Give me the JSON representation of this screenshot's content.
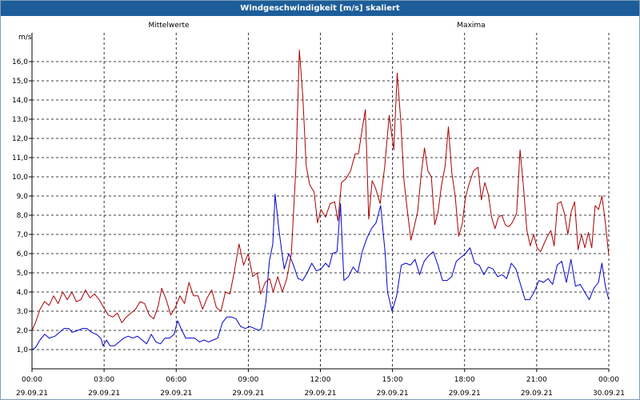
{
  "window": {
    "title": "Windgeschwindigkeit [m/s] skaliert"
  },
  "chart_data": {
    "type": "line",
    "title": "Windgeschwindigkeit [m/s] skaliert",
    "ylabel": "m/s",
    "ylim": [
      0,
      17.5
    ],
    "xlim": [
      0,
      24
    ],
    "grid": true,
    "y_ticks": [
      "1,0",
      "2,0",
      "3,0",
      "4,0",
      "5,0",
      "6,0",
      "7,0",
      "8,0",
      "9,0",
      "10,0",
      "11,0",
      "12,0",
      "13,0",
      "14,0",
      "15,0",
      "16,0"
    ],
    "x_ticks": [
      {
        "x": 0,
        "time": "00:00",
        "date": "29.09.21"
      },
      {
        "x": 3,
        "time": "03:00",
        "date": "29.09.21"
      },
      {
        "x": 6,
        "time": "06:00",
        "date": "29.09.21"
      },
      {
        "x": 9,
        "time": "09:00",
        "date": "29.09.21"
      },
      {
        "x": 12,
        "time": "12:00",
        "date": "29.09.21"
      },
      {
        "x": 15,
        "time": "15:00",
        "date": "29.09.21"
      },
      {
        "x": 18,
        "time": "18:00",
        "date": "29.09.21"
      },
      {
        "x": 21,
        "time": "21:00",
        "date": "29.09.21"
      },
      {
        "x": 24,
        "time": "00:00",
        "date": "30.09.21"
      }
    ],
    "series": [
      {
        "name": "Mittelwerte",
        "color": "#0000cc",
        "points": [
          [
            0,
            1.0
          ],
          [
            0.15,
            1.1
          ],
          [
            0.35,
            1.5
          ],
          [
            0.55,
            1.8
          ],
          [
            0.75,
            1.6
          ],
          [
            1.0,
            1.7
          ],
          [
            1.2,
            1.9
          ],
          [
            1.4,
            2.1
          ],
          [
            1.6,
            2.1
          ],
          [
            1.75,
            1.9
          ],
          [
            2.0,
            2.0
          ],
          [
            2.2,
            2.1
          ],
          [
            2.4,
            2.1
          ],
          [
            2.6,
            1.9
          ],
          [
            2.8,
            1.8
          ],
          [
            3.0,
            1.6
          ],
          [
            3.1,
            1.2
          ],
          [
            3.25,
            1.5
          ],
          [
            3.4,
            1.2
          ],
          [
            3.6,
            1.2
          ],
          [
            3.8,
            1.4
          ],
          [
            4.0,
            1.6
          ],
          [
            4.2,
            1.7
          ],
          [
            4.4,
            1.6
          ],
          [
            4.6,
            1.7
          ],
          [
            4.8,
            1.5
          ],
          [
            5.0,
            1.3
          ],
          [
            5.2,
            1.8
          ],
          [
            5.4,
            1.4
          ],
          [
            5.6,
            1.3
          ],
          [
            5.8,
            1.6
          ],
          [
            6.0,
            1.6
          ],
          [
            6.2,
            1.8
          ],
          [
            6.35,
            2.5
          ],
          [
            6.5,
            2.1
          ],
          [
            6.7,
            1.6
          ],
          [
            6.9,
            1.6
          ],
          [
            7.1,
            1.6
          ],
          [
            7.3,
            1.4
          ],
          [
            7.5,
            1.5
          ],
          [
            7.7,
            1.4
          ],
          [
            7.9,
            1.5
          ],
          [
            8.1,
            1.6
          ],
          [
            8.3,
            2.4
          ],
          [
            8.5,
            2.7
          ],
          [
            8.7,
            2.7
          ],
          [
            8.9,
            2.6
          ],
          [
            9.0,
            2.4
          ],
          [
            9.1,
            2.2
          ],
          [
            9.3,
            2.1
          ],
          [
            9.5,
            2.2
          ],
          [
            9.7,
            2.1
          ],
          [
            9.9,
            2.0
          ],
          [
            10.0,
            2.1
          ],
          [
            10.2,
            3.5
          ],
          [
            10.35,
            5.6
          ],
          [
            10.5,
            6.5
          ],
          [
            10.6,
            9.1
          ],
          [
            10.75,
            7.4
          ],
          [
            10.9,
            6.0
          ],
          [
            11.0,
            5.2
          ],
          [
            11.2,
            6.0
          ],
          [
            11.4,
            5.4
          ],
          [
            11.6,
            4.7
          ],
          [
            11.8,
            4.6
          ],
          [
            12.0,
            5.0
          ],
          [
            12.2,
            5.5
          ],
          [
            12.4,
            5.1
          ],
          [
            12.6,
            5.2
          ],
          [
            12.8,
            5.5
          ],
          [
            12.95,
            5.3
          ],
          [
            13.1,
            6.0
          ],
          [
            13.3,
            6.1
          ],
          [
            13.45,
            8.6
          ],
          [
            13.6,
            4.6
          ],
          [
            13.8,
            4.8
          ],
          [
            14.0,
            5.3
          ],
          [
            14.2,
            5.0
          ],
          [
            14.4,
            6.1
          ],
          [
            14.6,
            6.8
          ],
          [
            14.8,
            7.3
          ],
          [
            15.0,
            7.6
          ],
          [
            15.2,
            8.5
          ],
          [
            15.4,
            6.0
          ],
          [
            15.5,
            4.0
          ],
          [
            15.7,
            3.0
          ],
          [
            15.9,
            3.8
          ],
          [
            16.1,
            5.4
          ],
          [
            16.3,
            5.5
          ],
          [
            16.5,
            5.4
          ],
          [
            16.7,
            5.7
          ],
          [
            16.9,
            4.9
          ],
          [
            17.1,
            5.6
          ],
          [
            17.3,
            5.9
          ],
          [
            17.5,
            6.1
          ],
          [
            17.7,
            5.4
          ],
          [
            17.9,
            4.6
          ],
          [
            18.1,
            4.6
          ],
          [
            18.3,
            4.8
          ],
          [
            18.5,
            5.6
          ],
          [
            18.7,
            5.8
          ],
          [
            18.9,
            6.0
          ],
          [
            19.1,
            6.3
          ],
          [
            19.3,
            5.5
          ],
          [
            19.5,
            5.4
          ],
          [
            19.7,
            4.9
          ],
          [
            19.9,
            5.3
          ],
          [
            20.1,
            5.2
          ],
          [
            20.3,
            4.8
          ],
          [
            20.5,
            4.9
          ],
          [
            20.7,
            4.7
          ],
          [
            20.9,
            5.5
          ],
          [
            21.1,
            5.2
          ],
          [
            21.3,
            4.4
          ],
          [
            21.5,
            3.6
          ],
          [
            21.7,
            3.6
          ],
          [
            21.9,
            4.0
          ],
          [
            22.1,
            4.6
          ],
          [
            22.3,
            4.5
          ],
          [
            22.5,
            4.7
          ],
          [
            22.7,
            4.4
          ],
          [
            22.9,
            5.4
          ],
          [
            23.1,
            5.6
          ],
          [
            23.3,
            4.5
          ],
          [
            23.5,
            5.7
          ],
          [
            23.7,
            4.3
          ],
          [
            23.9,
            4.4
          ],
          [
            24.1,
            4.0
          ],
          [
            24.3,
            3.6
          ],
          [
            24.5,
            4.2
          ],
          [
            24.7,
            4.5
          ],
          [
            24.85,
            5.5
          ],
          [
            25.0,
            4.3
          ],
          [
            25.15,
            3.6
          ]
        ]
      },
      {
        "name": "Maxima",
        "color": "#aa0000",
        "points": [
          [
            0,
            2.0
          ],
          [
            0.15,
            2.4
          ],
          [
            0.35,
            3.1
          ],
          [
            0.55,
            3.5
          ],
          [
            0.75,
            3.3
          ],
          [
            0.95,
            3.8
          ],
          [
            1.15,
            3.4
          ],
          [
            1.35,
            4.0
          ],
          [
            1.55,
            3.6
          ],
          [
            1.75,
            4.0
          ],
          [
            1.95,
            3.5
          ],
          [
            2.15,
            3.6
          ],
          [
            2.35,
            4.1
          ],
          [
            2.55,
            3.7
          ],
          [
            2.75,
            3.9
          ],
          [
            2.95,
            3.6
          ],
          [
            3.15,
            3.2
          ],
          [
            3.35,
            2.8
          ],
          [
            3.55,
            2.7
          ],
          [
            3.75,
            2.9
          ],
          [
            3.95,
            2.4
          ],
          [
            4.15,
            2.7
          ],
          [
            4.35,
            2.9
          ],
          [
            4.55,
            3.1
          ],
          [
            4.75,
            3.5
          ],
          [
            4.95,
            3.4
          ],
          [
            5.15,
            2.8
          ],
          [
            5.35,
            2.6
          ],
          [
            5.55,
            3.3
          ],
          [
            5.7,
            4.2
          ],
          [
            5.9,
            3.6
          ],
          [
            6.1,
            2.8
          ],
          [
            6.3,
            3.2
          ],
          [
            6.5,
            3.8
          ],
          [
            6.7,
            3.4
          ],
          [
            6.9,
            4.5
          ],
          [
            7.1,
            3.8
          ],
          [
            7.3,
            3.8
          ],
          [
            7.5,
            3.1
          ],
          [
            7.7,
            3.7
          ],
          [
            7.9,
            4.1
          ],
          [
            8.1,
            3.2
          ],
          [
            8.3,
            3.0
          ],
          [
            8.5,
            4.0
          ],
          [
            8.7,
            3.9
          ],
          [
            8.9,
            5.1
          ],
          [
            9.1,
            6.5
          ],
          [
            9.3,
            5.4
          ],
          [
            9.5,
            6.0
          ],
          [
            9.7,
            4.8
          ],
          [
            9.9,
            5.0
          ],
          [
            10.05,
            3.9
          ],
          [
            10.25,
            4.5
          ],
          [
            10.45,
            4.7
          ],
          [
            10.6,
            4.0
          ],
          [
            10.8,
            4.8
          ],
          [
            11.0,
            4.0
          ],
          [
            11.2,
            4.7
          ],
          [
            11.4,
            6.0
          ],
          [
            11.6,
            10.5
          ],
          [
            11.75,
            16.6
          ],
          [
            11.9,
            14.2
          ],
          [
            12.05,
            10.6
          ],
          [
            12.2,
            9.6
          ],
          [
            12.4,
            9.2
          ],
          [
            12.55,
            7.6
          ],
          [
            12.7,
            8.3
          ],
          [
            12.9,
            7.9
          ],
          [
            13.1,
            8.6
          ],
          [
            13.3,
            8.7
          ],
          [
            13.45,
            7.7
          ],
          [
            13.6,
            9.7
          ],
          [
            13.8,
            9.9
          ],
          [
            14.0,
            10.3
          ],
          [
            14.2,
            11.2
          ],
          [
            14.35,
            11.2
          ],
          [
            14.5,
            12.4
          ],
          [
            14.65,
            13.5
          ],
          [
            14.8,
            7.8
          ],
          [
            14.95,
            9.8
          ],
          [
            15.1,
            9.4
          ],
          [
            15.3,
            8.6
          ],
          [
            15.5,
            10.5
          ],
          [
            15.7,
            13.2
          ],
          [
            15.9,
            11.4
          ],
          [
            16.05,
            15.4
          ],
          [
            16.2,
            13.0
          ],
          [
            16.35,
            9.8
          ],
          [
            16.5,
            8.2
          ],
          [
            16.65,
            6.7
          ],
          [
            16.8,
            7.4
          ],
          [
            16.95,
            8.2
          ],
          [
            17.1,
            10.1
          ],
          [
            17.25,
            11.5
          ],
          [
            17.4,
            10.3
          ],
          [
            17.55,
            10.0
          ],
          [
            17.7,
            7.5
          ],
          [
            17.85,
            8.2
          ],
          [
            18.0,
            9.6
          ],
          [
            18.15,
            10.5
          ],
          [
            18.3,
            12.6
          ],
          [
            18.45,
            10.2
          ],
          [
            18.6,
            9.0
          ],
          [
            18.75,
            6.9
          ],
          [
            18.9,
            7.5
          ],
          [
            19.05,
            8.9
          ],
          [
            19.2,
            9.6
          ],
          [
            19.4,
            10.3
          ],
          [
            19.6,
            10.5
          ],
          [
            19.75,
            8.8
          ],
          [
            19.9,
            9.7
          ],
          [
            20.05,
            9.1
          ],
          [
            20.2,
            7.9
          ],
          [
            20.35,
            7.3
          ],
          [
            20.5,
            7.9
          ],
          [
            20.65,
            8.0
          ],
          [
            20.8,
            7.5
          ],
          [
            20.95,
            7.4
          ],
          [
            21.1,
            7.6
          ],
          [
            21.3,
            8.1
          ],
          [
            21.45,
            11.4
          ],
          [
            21.6,
            9.5
          ],
          [
            21.75,
            7.2
          ],
          [
            21.9,
            6.4
          ],
          [
            22.05,
            7.0
          ],
          [
            22.2,
            6.3
          ],
          [
            22.35,
            6.1
          ],
          [
            22.5,
            6.5
          ],
          [
            22.65,
            6.9
          ],
          [
            22.8,
            7.2
          ],
          [
            22.95,
            6.4
          ],
          [
            23.1,
            8.6
          ],
          [
            23.25,
            8.7
          ],
          [
            23.4,
            8.1
          ],
          [
            23.55,
            7.0
          ],
          [
            23.7,
            8.2
          ],
          [
            23.85,
            8.7
          ],
          [
            24.0,
            6.2
          ],
          [
            24.15,
            7.0
          ],
          [
            24.3,
            6.3
          ],
          [
            24.45,
            7.1
          ],
          [
            24.6,
            6.3
          ],
          [
            24.75,
            8.5
          ],
          [
            24.9,
            8.3
          ],
          [
            25.05,
            9.0
          ],
          [
            25.2,
            7.6
          ],
          [
            25.35,
            5.9
          ]
        ]
      }
    ]
  }
}
